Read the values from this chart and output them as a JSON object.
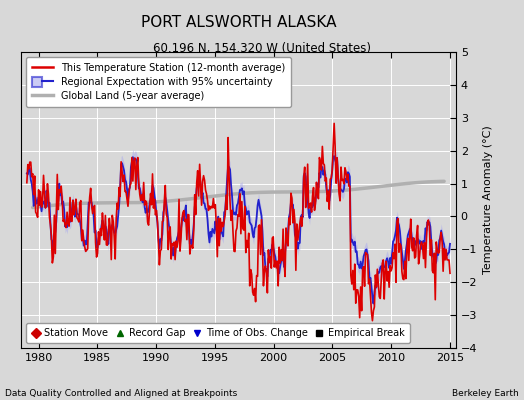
{
  "title": "PORT ALSWORTH ALASKA",
  "subtitle": "60.196 N, 154.320 W (United States)",
  "ylabel": "Temperature Anomaly (°C)",
  "xlabel_note": "Data Quality Controlled and Aligned at Breakpoints",
  "credit": "Berkeley Earth",
  "xlim": [
    1978.5,
    2015.5
  ],
  "ylim": [
    -4,
    5
  ],
  "yticks": [
    -4,
    -3,
    -2,
    -1,
    0,
    1,
    2,
    3,
    4,
    5
  ],
  "xticks": [
    1980,
    1985,
    1990,
    1995,
    2000,
    2005,
    2010,
    2015
  ],
  "bg_color": "#d8d8d8",
  "plot_bg": "#d8d8d8",
  "red_color": "#dd0000",
  "blue_color": "#2222cc",
  "blue_fill": "#aaaaee",
  "gray_color": "#b0b0b0",
  "legend_items": [
    {
      "label": "This Temperature Station (12-month average)",
      "color": "#dd0000",
      "lw": 1.5
    },
    {
      "label": "Regional Expectation with 95% uncertainty",
      "color": "#2222cc",
      "lw": 1.5
    },
    {
      "label": "Global Land (5-year average)",
      "color": "#b0b0b0",
      "lw": 2.0
    }
  ],
  "marker_items": [
    {
      "label": "Station Move",
      "color": "#cc0000",
      "marker": "D"
    },
    {
      "label": "Record Gap",
      "color": "#006600",
      "marker": "^"
    },
    {
      "label": "Time of Obs. Change",
      "color": "#0000cc",
      "marker": "v"
    },
    {
      "label": "Empirical Break",
      "color": "#000000",
      "marker": "s"
    }
  ]
}
